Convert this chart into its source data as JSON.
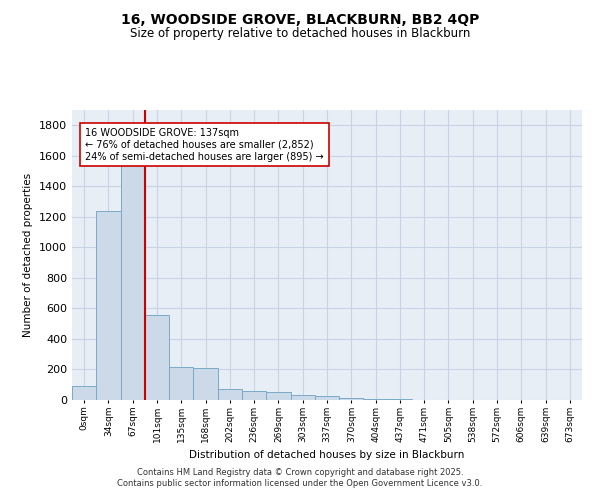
{
  "title_line1": "16, WOODSIDE GROVE, BLACKBURN, BB2 4QP",
  "title_line2": "Size of property relative to detached houses in Blackburn",
  "xlabel": "Distribution of detached houses by size in Blackburn",
  "ylabel": "Number of detached properties",
  "bin_labels": [
    "0sqm",
    "34sqm",
    "67sqm",
    "101sqm",
    "135sqm",
    "168sqm",
    "202sqm",
    "236sqm",
    "269sqm",
    "303sqm",
    "337sqm",
    "370sqm",
    "404sqm",
    "437sqm",
    "471sqm",
    "505sqm",
    "538sqm",
    "572sqm",
    "606sqm",
    "639sqm",
    "673sqm"
  ],
  "bar_values": [
    95,
    1240,
    1650,
    560,
    215,
    210,
    70,
    60,
    50,
    35,
    25,
    12,
    8,
    5,
    3,
    2,
    1,
    1,
    0,
    0,
    0
  ],
  "bar_color": "#ccd9e8",
  "bar_edge_color": "#7aaac8",
  "vline_color": "#cc0000",
  "annotation_text": "16 WOODSIDE GROVE: 137sqm\n← 76% of detached houses are smaller (2,852)\n24% of semi-detached houses are larger (895) →",
  "annotation_box_color": "#ffffff",
  "annotation_box_edge": "#cc0000",
  "ylim": [
    0,
    1900
  ],
  "yticks": [
    0,
    200,
    400,
    600,
    800,
    1000,
    1200,
    1400,
    1600,
    1800
  ],
  "grid_color": "#c8d4e4",
  "background_color": "#e8eef6",
  "footer_line1": "Contains HM Land Registry data © Crown copyright and database right 2025.",
  "footer_line2": "Contains public sector information licensed under the Open Government Licence v3.0."
}
